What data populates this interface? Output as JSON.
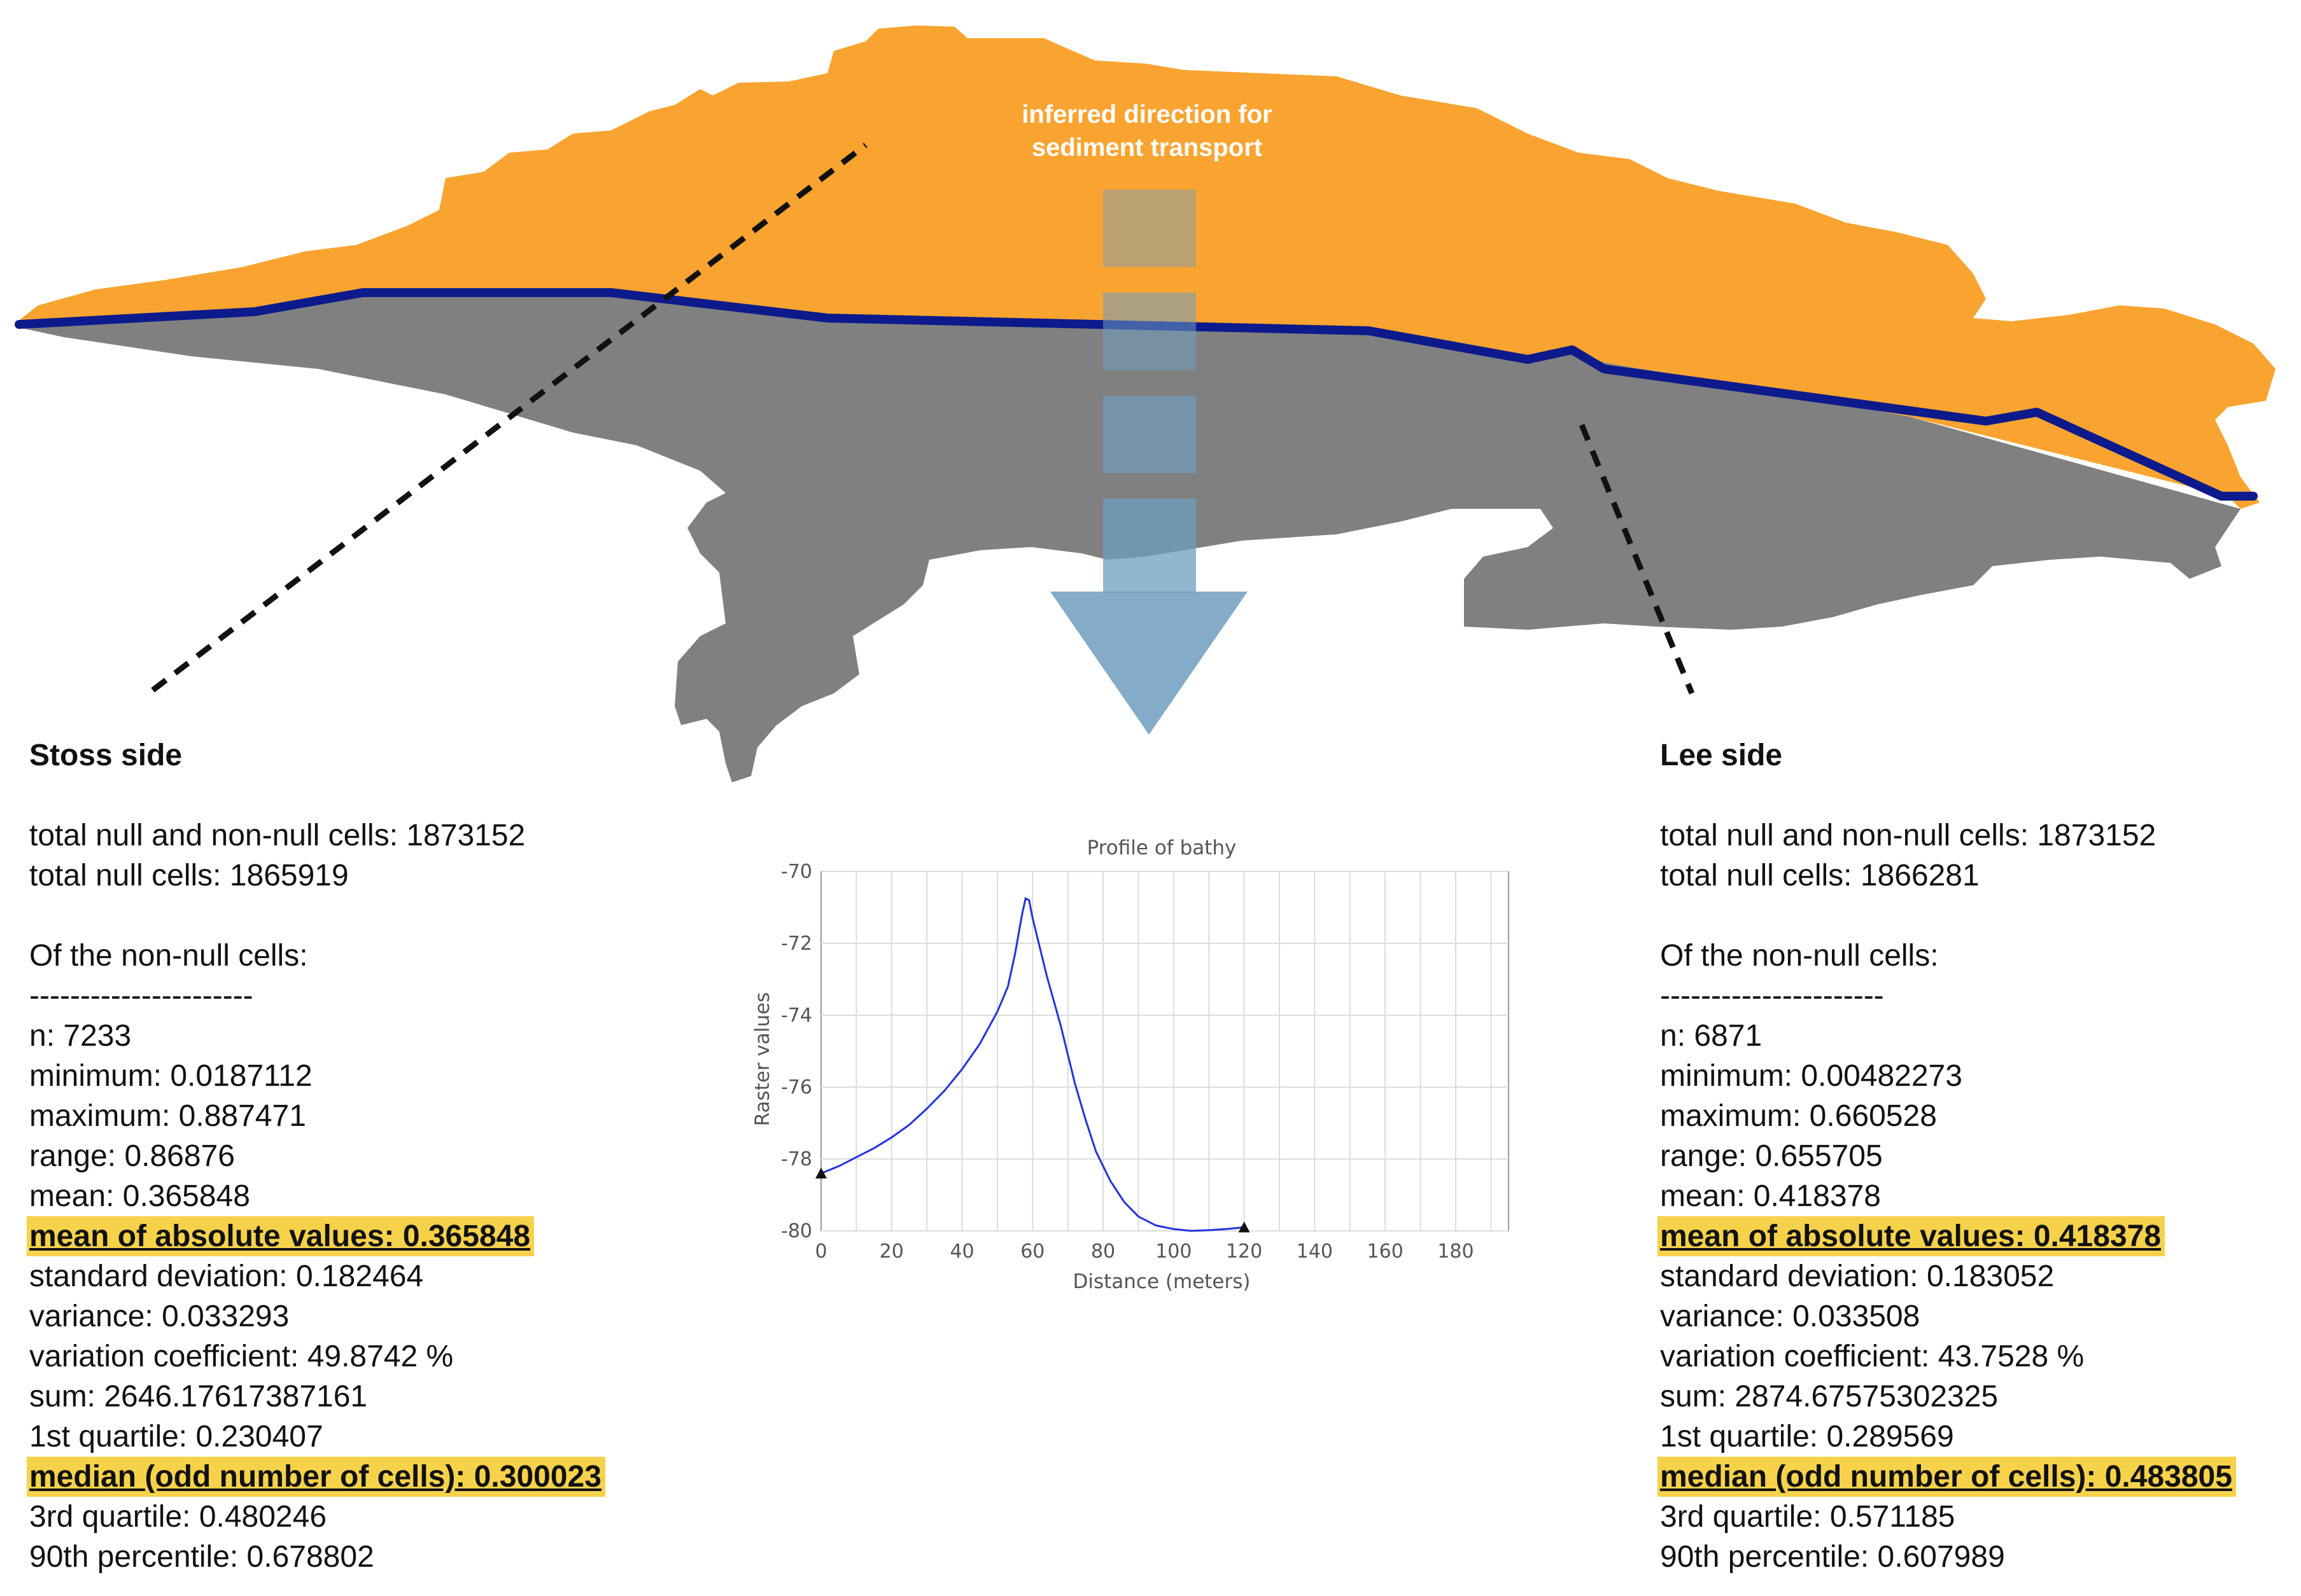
{
  "annotation": {
    "line1": "inferred direction for",
    "line2": "sediment transport"
  },
  "stoss": {
    "title": "Stoss side",
    "lines": [
      {
        "text": "total null and non-null cells: 1873152"
      },
      {
        "text": "total null cells: 1865919"
      },
      {
        "text": ""
      },
      {
        "text": "Of the non-null cells:"
      },
      {
        "text": "----------------------"
      },
      {
        "text": "n: 7233"
      },
      {
        "text": "minimum: 0.0187112"
      },
      {
        "text": "maximum: 0.887471"
      },
      {
        "text": "range: 0.86876"
      },
      {
        "text": "mean: 0.365848"
      },
      {
        "text": "mean of absolute values: 0.365848",
        "highlight": true
      },
      {
        "text": "standard deviation: 0.182464"
      },
      {
        "text": "variance: 0.033293"
      },
      {
        "text": "variation coefficient: 49.8742 %"
      },
      {
        "text": "sum: 2646.17617387161"
      },
      {
        "text": "1st quartile: 0.230407"
      },
      {
        "text": "median (odd number of cells): 0.300023",
        "highlight": true
      },
      {
        "text": "3rd quartile: 0.480246"
      },
      {
        "text": "90th percentile: 0.678802"
      }
    ]
  },
  "lee": {
    "title": "Lee side",
    "lines": [
      {
        "text": "total null and non-null cells: 1873152"
      },
      {
        "text": "total null cells: 1866281"
      },
      {
        "text": ""
      },
      {
        "text": "Of the non-null cells:"
      },
      {
        "text": "----------------------"
      },
      {
        "text": "n: 6871"
      },
      {
        "text": "minimum: 0.00482273"
      },
      {
        "text": "maximum: 0.660528"
      },
      {
        "text": "range: 0.655705"
      },
      {
        "text": "mean: 0.418378"
      },
      {
        "text": "mean of absolute values: 0.418378",
        "highlight": true
      },
      {
        "text": "standard deviation: 0.183052"
      },
      {
        "text": "variance: 0.033508"
      },
      {
        "text": "variation coefficient: 43.7528 %"
      },
      {
        "text": "sum: 2874.67575302325"
      },
      {
        "text": "1st quartile: 0.289569"
      },
      {
        "text": "median (odd number of cells): 0.483805",
        "highlight": true
      },
      {
        "text": "3rd quartile: 0.571185"
      },
      {
        "text": "90th percentile: 0.607989"
      }
    ]
  },
  "colors": {
    "stoss_fill": "#f9a430",
    "lee_fill": "#808080",
    "crest_line": "#0d1a8c",
    "arrow": "#6f9dbf",
    "highlight": "#f6d24a",
    "profile_line": "#2233dd"
  },
  "chart_data": {
    "type": "line",
    "title": "Profile of bathy",
    "xlabel": "Distance (meters)",
    "ylabel": "Raster values",
    "xlim": [
      0,
      195
    ],
    "ylim": [
      -80,
      -70
    ],
    "xticks": [
      0,
      20,
      40,
      60,
      80,
      100,
      120,
      140,
      160,
      180
    ],
    "yticks": [
      -70,
      -72,
      -74,
      -76,
      -78,
      -80
    ],
    "grid": true,
    "endpoints": [
      [
        0,
        -78.4
      ],
      [
        120,
        -79.9
      ]
    ],
    "series": [
      {
        "values": [
          [
            0,
            -78.4
          ],
          [
            5,
            -78.2
          ],
          [
            10,
            -77.95
          ],
          [
            15,
            -77.7
          ],
          [
            20,
            -77.4
          ],
          [
            25,
            -77.05
          ],
          [
            30,
            -76.6
          ],
          [
            35,
            -76.1
          ],
          [
            40,
            -75.5
          ],
          [
            45,
            -74.8
          ],
          [
            50,
            -73.9
          ],
          [
            53,
            -73.2
          ],
          [
            55,
            -72.3
          ],
          [
            57,
            -71.2
          ],
          [
            58,
            -70.75
          ],
          [
            59,
            -70.8
          ],
          [
            60,
            -71.3
          ],
          [
            62,
            -72.1
          ],
          [
            64,
            -72.9
          ],
          [
            66,
            -73.6
          ],
          [
            68,
            -74.3
          ],
          [
            70,
            -75.1
          ],
          [
            72,
            -75.9
          ],
          [
            75,
            -76.9
          ],
          [
            78,
            -77.8
          ],
          [
            82,
            -78.6
          ],
          [
            86,
            -79.2
          ],
          [
            90,
            -79.6
          ],
          [
            95,
            -79.85
          ],
          [
            100,
            -79.95
          ],
          [
            105,
            -80.0
          ],
          [
            110,
            -79.98
          ],
          [
            115,
            -79.95
          ],
          [
            120,
            -79.9
          ]
        ]
      }
    ]
  }
}
